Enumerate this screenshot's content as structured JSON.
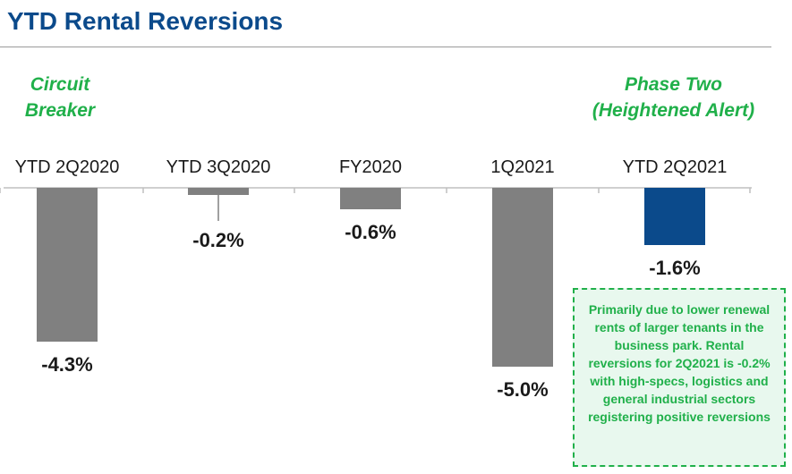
{
  "title": "YTD Rental Reversions",
  "phases": {
    "left": [
      "Circuit",
      "Breaker"
    ],
    "right": [
      "Phase Two",
      "(Heightened Alert)"
    ]
  },
  "chart_data": {
    "type": "bar",
    "categories": [
      "YTD 2Q2020",
      "YTD 3Q2020",
      "FY2020",
      "1Q2021",
      "YTD 2Q2021"
    ],
    "values": [
      -4.3,
      -0.2,
      -0.6,
      -5.0,
      -1.6
    ],
    "data_labels": [
      "-4.3%",
      "-0.2%",
      "-0.6%",
      "-5.0%",
      "-1.6%"
    ],
    "ylim": [
      -5.0,
      0
    ],
    "colors": {
      "default": "#808080",
      "highlight": "#0b4a8b",
      "axis": "#bfbfbf",
      "label": "#1a1a1a"
    },
    "highlight_index": 4,
    "grid": false,
    "legend": false
  },
  "note": "Primarily due to lower renewal rents of larger tenants in the business park. Rental reversions for 2Q2021 is -0.2% with high-specs, logistics and general industrial sectors registering positive reversions"
}
